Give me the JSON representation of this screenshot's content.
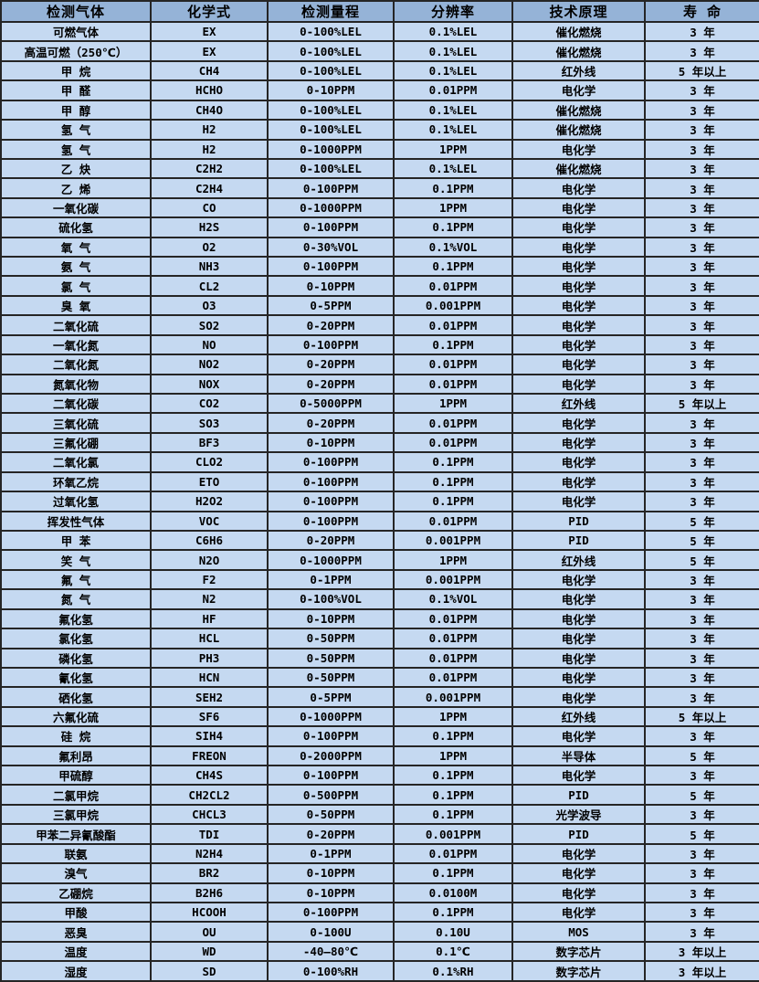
{
  "colors": {
    "header_bg": "#95B3D7",
    "row_bg": "#C5D9F1",
    "border": "#252525",
    "text": "#000000"
  },
  "table": {
    "columns": [
      {
        "label": "检测气体"
      },
      {
        "label": "化学式"
      },
      {
        "label": "检测量程"
      },
      {
        "label": "分辨率"
      },
      {
        "label": "技术原理"
      },
      {
        "label": "寿 命"
      }
    ],
    "rows": [
      [
        "可燃气体",
        "EX",
        "0-100%LEL",
        "0.1%LEL",
        "催化燃烧",
        "3 年"
      ],
      [
        "高温可燃（250℃）",
        "EX",
        "0-100%LEL",
        "0.1%LEL",
        "催化燃烧",
        "3 年"
      ],
      [
        "甲 烷",
        "CH4",
        "0-100%LEL",
        "0.1%LEL",
        "红外线",
        "5 年以上"
      ],
      [
        "甲 醛",
        "HCHO",
        "0-10PPM",
        "0.01PPM",
        "电化学",
        "3 年"
      ],
      [
        "甲 醇",
        "CH4O",
        "0-100%LEL",
        "0.1%LEL",
        "催化燃烧",
        "3 年"
      ],
      [
        "氢 气",
        "H2",
        "0-100%LEL",
        "0.1%LEL",
        "催化燃烧",
        "3 年"
      ],
      [
        "氢 气",
        "H2",
        "0-1000PPM",
        "1PPM",
        "电化学",
        "3 年"
      ],
      [
        "乙 炔",
        "C2H2",
        "0-100%LEL",
        "0.1%LEL",
        "催化燃烧",
        "3 年"
      ],
      [
        "乙 烯",
        "C2H4",
        "0-100PPM",
        "0.1PPM",
        "电化学",
        "3 年"
      ],
      [
        "一氧化碳",
        "CO",
        "0-1000PPM",
        "1PPM",
        "电化学",
        "3 年"
      ],
      [
        "硫化氢",
        "H2S",
        "0-100PPM",
        "0.1PPM",
        "电化学",
        "3 年"
      ],
      [
        "氧 气",
        "O2",
        "0-30%VOL",
        "0.1%VOL",
        "电化学",
        "3 年"
      ],
      [
        "氨 气",
        "NH3",
        "0-100PPM",
        "0.1PPM",
        "电化学",
        "3 年"
      ],
      [
        "氯 气",
        "CL2",
        "0-10PPM",
        "0.01PPM",
        "电化学",
        "3 年"
      ],
      [
        "臭 氧",
        "O3",
        "0-5PPM",
        "0.001PPM",
        "电化学",
        "3 年"
      ],
      [
        "二氧化硫",
        "SO2",
        "0-20PPM",
        "0.01PPM",
        "电化学",
        "3 年"
      ],
      [
        "一氧化氮",
        "NO",
        "0-100PPM",
        "0.1PPM",
        "电化学",
        "3 年"
      ],
      [
        "二氧化氮",
        "NO2",
        "0-20PPM",
        "0.01PPM",
        "电化学",
        "3 年"
      ],
      [
        "氮氧化物",
        "NOX",
        "0-20PPM",
        "0.01PPM",
        "电化学",
        "3 年"
      ],
      [
        "二氧化碳",
        "CO2",
        "0-5000PPM",
        "1PPM",
        "红外线",
        "5 年以上"
      ],
      [
        "三氧化硫",
        "SO3",
        "0-20PPM",
        "0.01PPM",
        "电化学",
        "3 年"
      ],
      [
        "三氟化硼",
        "BF3",
        "0-10PPM",
        "0.01PPM",
        "电化学",
        "3 年"
      ],
      [
        "二氧化氯",
        "CLO2",
        "0-100PPM",
        "0.1PPM",
        "电化学",
        "3 年"
      ],
      [
        "环氧乙烷",
        "ETO",
        "0-100PPM",
        "0.1PPM",
        "电化学",
        "3 年"
      ],
      [
        "过氧化氢",
        "H2O2",
        "0-100PPM",
        "0.1PPM",
        "电化学",
        "3 年"
      ],
      [
        "挥发性气体",
        "VOC",
        "0-100PPM",
        "0.01PPM",
        "PID",
        "5 年"
      ],
      [
        "甲 苯",
        "C6H6",
        "0-20PPM",
        "0.001PPM",
        "PID",
        "5 年"
      ],
      [
        "笑 气",
        "N2O",
        "0-1000PPM",
        "1PPM",
        "红外线",
        "5 年"
      ],
      [
        "氟 气",
        "F2",
        "0-1PPM",
        "0.001PPM",
        "电化学",
        "3 年"
      ],
      [
        "氮 气",
        "N2",
        "0-100%VOL",
        "0.1%VOL",
        "电化学",
        "3 年"
      ],
      [
        "氟化氢",
        "HF",
        "0-10PPM",
        "0.01PPM",
        "电化学",
        "3 年"
      ],
      [
        "氯化氢",
        "HCL",
        "0-50PPM",
        "0.01PPM",
        "电化学",
        "3 年"
      ],
      [
        "磷化氢",
        "PH3",
        "0-50PPM",
        "0.01PPM",
        "电化学",
        "3 年"
      ],
      [
        "氰化氢",
        "HCN",
        "0-50PPM",
        "0.01PPM",
        "电化学",
        "3 年"
      ],
      [
        "硒化氢",
        "SEH2",
        "0-5PPM",
        "0.001PPM",
        "电化学",
        "3 年"
      ],
      [
        "六氟化硫",
        "SF6",
        "0-1000PPM",
        "1PPM",
        "红外线",
        "5 年以上"
      ],
      [
        "硅 烷",
        "SIH4",
        "0-100PPM",
        "0.1PPM",
        "电化学",
        "3 年"
      ],
      [
        "氟利昂",
        "FREON",
        "0-2000PPM",
        "1PPM",
        "半导体",
        "5 年"
      ],
      [
        "甲硫醇",
        "CH4S",
        "0-100PPM",
        "0.1PPM",
        "电化学",
        "3 年"
      ],
      [
        "二氯甲烷",
        "CH2CL2",
        "0-500PPM",
        "0.1PPM",
        "PID",
        "5 年"
      ],
      [
        "三氯甲烷",
        "CHCL3",
        "0-50PPM",
        "0.1PPM",
        "光学波导",
        "3 年"
      ],
      [
        "甲苯二异氰酸酯",
        "TDI",
        "0-20PPM",
        "0.001PPM",
        "PID",
        "5 年"
      ],
      [
        "联氨",
        "N2H4",
        "0-1PPM",
        "0.01PPM",
        "电化学",
        "3 年"
      ],
      [
        "溴气",
        "BR2",
        "0-10PPM",
        "0.1PPM",
        "电化学",
        "3 年"
      ],
      [
        "乙硼烷",
        "B2H6",
        "0-10PPM",
        "0.0100M",
        "电化学",
        "3 年"
      ],
      [
        "甲酸",
        "HCOOH",
        "0-100PPM",
        "0.1PPM",
        "电化学",
        "3 年"
      ],
      [
        "恶臭",
        "OU",
        "0-100U",
        "0.10U",
        "MOS",
        "3 年"
      ],
      [
        "温度",
        "WD",
        "-40—80℃",
        "0.1℃",
        "数字芯片",
        "3 年以上"
      ],
      [
        "湿度",
        "SD",
        "0-100%RH",
        "0.1%RH",
        "数字芯片",
        "3 年以上"
      ]
    ]
  }
}
